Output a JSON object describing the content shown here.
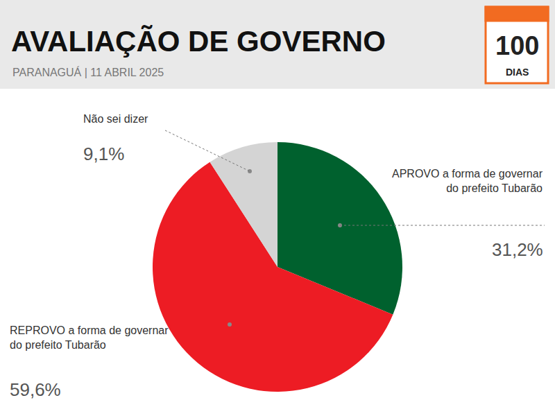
{
  "chart_data": {
    "type": "pie",
    "title": "AVALIAÇÃO DE GOVERNO",
    "subtitle": "PARANAGUÁ | 11 ABRIL 2025",
    "annotations": [
      "100",
      "DIAS"
    ],
    "categories": [
      "APROVO a forma de governar do prefeito Tubarão",
      "REPROVO a forma de governar do prefeito Tubarão",
      "Não sei dizer"
    ],
    "values": [
      31.2,
      59.6,
      9.1
    ],
    "value_labels": [
      "31,2%",
      "59,6%",
      "9,1%"
    ],
    "colors": [
      "#00612e",
      "#ed1c24",
      "#d4d4d4"
    ],
    "data_labels": true
  }
}
